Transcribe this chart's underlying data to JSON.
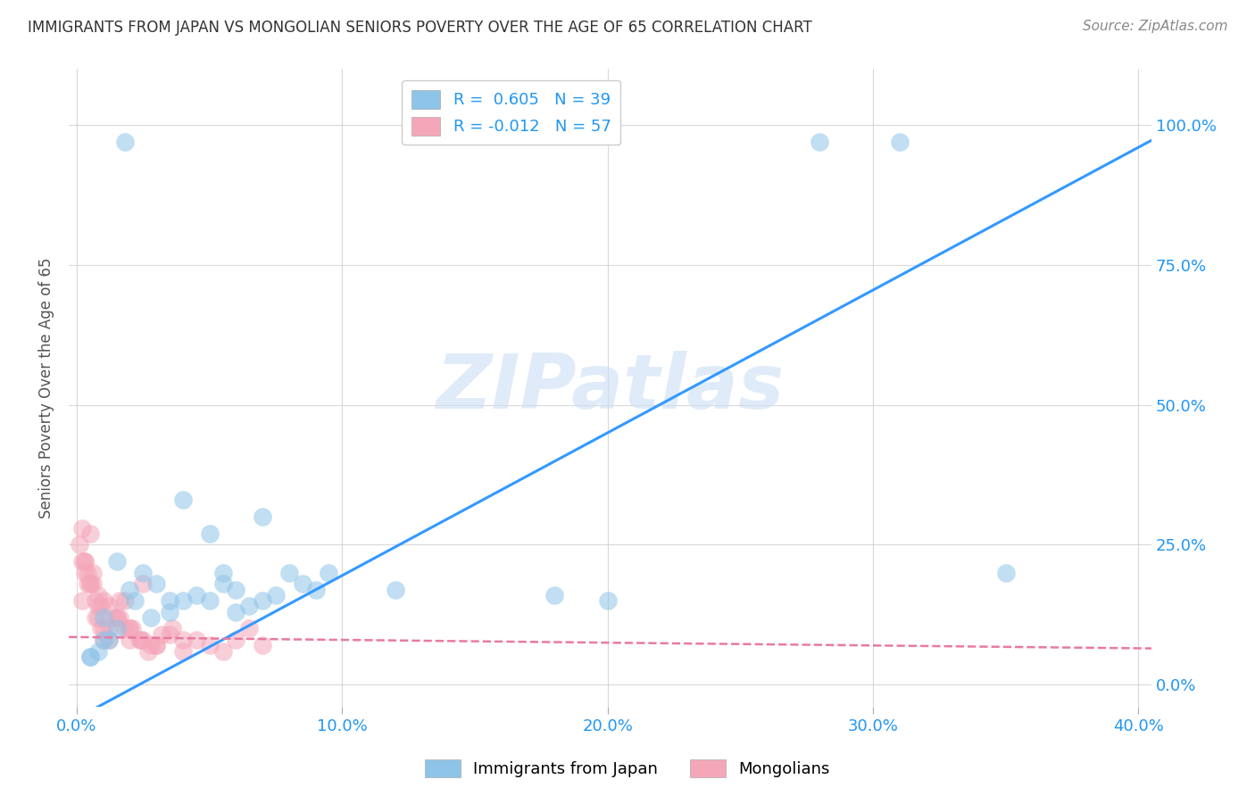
{
  "title": "IMMIGRANTS FROM JAPAN VS MONGOLIAN SENIORS POVERTY OVER THE AGE OF 65 CORRELATION CHART",
  "source": "Source: ZipAtlas.com",
  "ylabel": "Seniors Poverty Over the Age of 65",
  "watermark": "ZIPatlas",
  "legend1_label": "R =  0.605   N = 39",
  "legend2_label": "R = -0.012   N = 57",
  "blue_color": "#8ec4e8",
  "pink_color": "#f4a7b9",
  "blue_line_color": "#3399ff",
  "pink_line_color": "#e87aa0",
  "xlim": [
    -0.003,
    0.405
  ],
  "ylim": [
    -0.04,
    1.1
  ],
  "xticks": [
    0.0,
    0.1,
    0.2,
    0.3,
    0.4
  ],
  "yticks": [
    0.0,
    0.25,
    0.5,
    0.75,
    1.0
  ],
  "xtick_labels": [
    "0.0%",
    "10.0%",
    "20.0%",
    "30.0%",
    "40.0%"
  ],
  "ytick_labels": [
    "0.0%",
    "25.0%",
    "50.0%",
    "75.0%",
    "100.0%"
  ],
  "japan_x": [
    0.018,
    0.005,
    0.01,
    0.015,
    0.022,
    0.028,
    0.035,
    0.04,
    0.045,
    0.05,
    0.055,
    0.06,
    0.065,
    0.07,
    0.075,
    0.08,
    0.085,
    0.09,
    0.095,
    0.01,
    0.02,
    0.03,
    0.025,
    0.015,
    0.05,
    0.055,
    0.06,
    0.07,
    0.12,
    0.18,
    0.2,
    0.28,
    0.31,
    0.35,
    0.005,
    0.008,
    0.012,
    0.04,
    0.035
  ],
  "japan_y": [
    0.97,
    0.05,
    0.08,
    0.1,
    0.15,
    0.12,
    0.13,
    0.15,
    0.16,
    0.15,
    0.18,
    0.13,
    0.14,
    0.15,
    0.16,
    0.2,
    0.18,
    0.17,
    0.2,
    0.12,
    0.17,
    0.18,
    0.2,
    0.22,
    0.27,
    0.2,
    0.17,
    0.3,
    0.17,
    0.16,
    0.15,
    0.97,
    0.97,
    0.2,
    0.05,
    0.06,
    0.08,
    0.33,
    0.15
  ],
  "mongolia_x": [
    0.001,
    0.002,
    0.003,
    0.004,
    0.005,
    0.006,
    0.007,
    0.008,
    0.009,
    0.01,
    0.002,
    0.003,
    0.005,
    0.007,
    0.01,
    0.012,
    0.014,
    0.016,
    0.018,
    0.02,
    0.003,
    0.006,
    0.009,
    0.012,
    0.015,
    0.018,
    0.021,
    0.024,
    0.027,
    0.03,
    0.004,
    0.008,
    0.012,
    0.016,
    0.02,
    0.024,
    0.028,
    0.032,
    0.036,
    0.04,
    0.005,
    0.01,
    0.015,
    0.02,
    0.025,
    0.03,
    0.035,
    0.04,
    0.045,
    0.05,
    0.055,
    0.06,
    0.065,
    0.07,
    0.002,
    0.008,
    0.025
  ],
  "mongolia_y": [
    0.25,
    0.28,
    0.22,
    0.18,
    0.27,
    0.2,
    0.15,
    0.12,
    0.1,
    0.08,
    0.15,
    0.2,
    0.18,
    0.12,
    0.1,
    0.08,
    0.12,
    0.15,
    0.1,
    0.08,
    0.22,
    0.18,
    0.14,
    0.1,
    0.12,
    0.15,
    0.1,
    0.08,
    0.06,
    0.07,
    0.2,
    0.16,
    0.14,
    0.12,
    0.1,
    0.08,
    0.07,
    0.09,
    0.1,
    0.08,
    0.18,
    0.15,
    0.12,
    0.1,
    0.08,
    0.07,
    0.09,
    0.06,
    0.08,
    0.07,
    0.06,
    0.08,
    0.1,
    0.07,
    0.22,
    0.14,
    0.18
  ],
  "blue_slope": 2.55,
  "blue_intercept": -0.06,
  "pink_slope": -0.05,
  "pink_intercept": 0.085
}
